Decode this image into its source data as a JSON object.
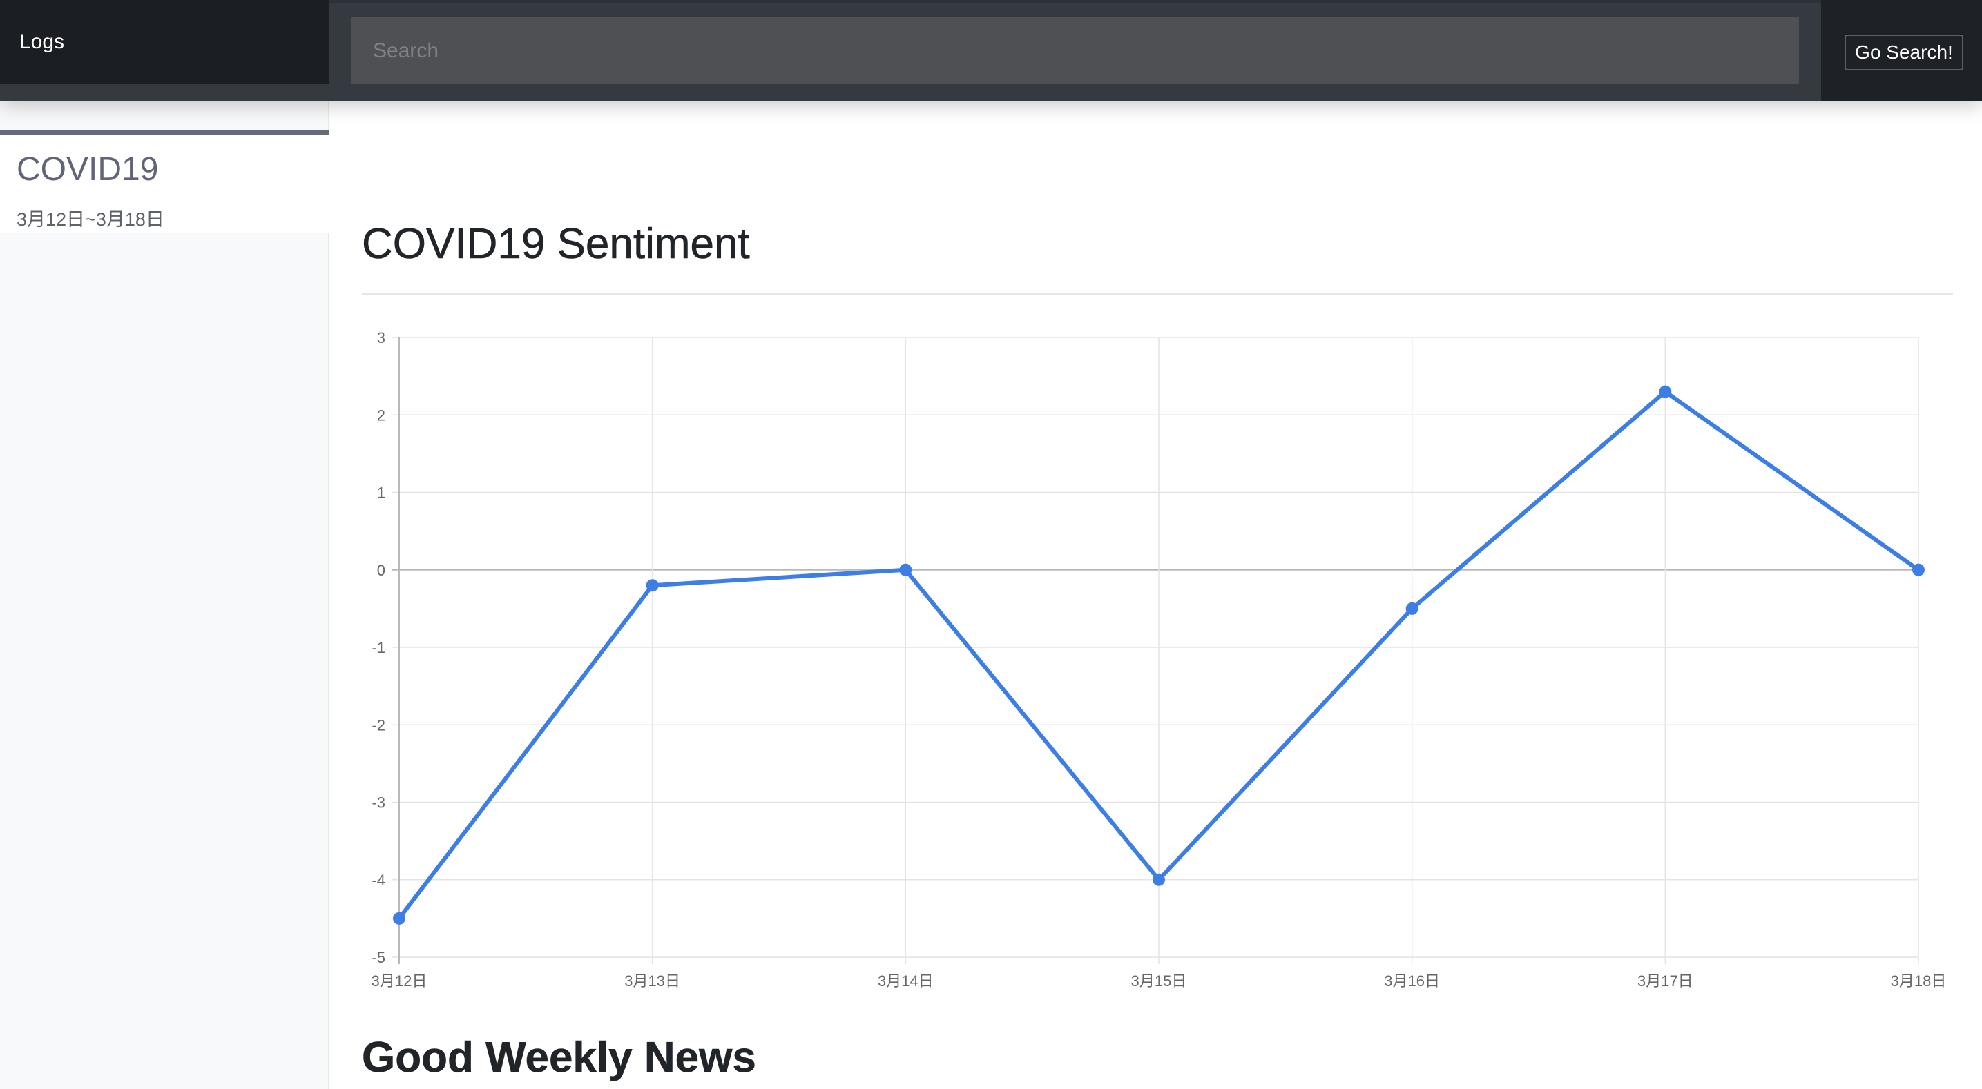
{
  "navbar": {
    "brand": "Logs",
    "search_placeholder": "Search",
    "search_button": "Go Search!"
  },
  "sidebar": {
    "items": [
      {
        "title": "COVID19",
        "range": "3月12日~3月18日"
      }
    ]
  },
  "main": {
    "title": "COVID19 Sentiment",
    "section_title": "Good Weekly News"
  },
  "colors": {
    "line": "#3d7ee6",
    "navbar": "#343a40",
    "sidebar_accent": "#666a7a"
  },
  "chart_data": {
    "type": "line",
    "categories": [
      "3月12日",
      "3月13日",
      "3月14日",
      "3月15日",
      "3月16日",
      "3月17日",
      "3月18日"
    ],
    "series": [
      {
        "values": [
          -4.5,
          -0.2,
          0,
          -4,
          -0.5,
          2.3,
          0
        ]
      }
    ],
    "yticks": [
      "3",
      "2",
      "1",
      "0",
      "-1",
      "-2",
      "-3",
      "-4",
      "-5"
    ],
    "ylim": [
      -5,
      3
    ],
    "grid": true,
    "legend": "none",
    "title": "",
    "xlabel": "",
    "ylabel": ""
  }
}
